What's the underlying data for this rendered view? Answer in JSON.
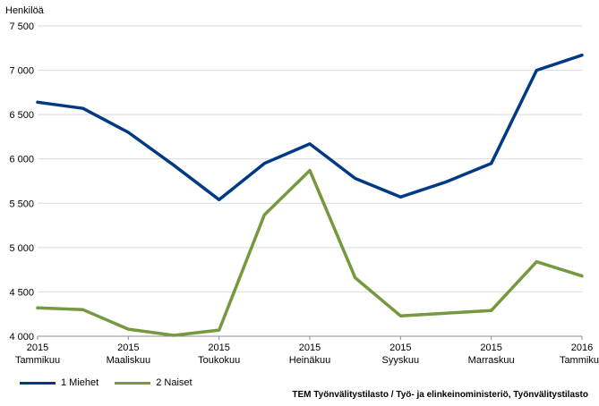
{
  "chart_data": {
    "type": "line",
    "ylabel": "Henkilöä",
    "ylim": [
      4000,
      7500
    ],
    "yticks": [
      4000,
      4500,
      5000,
      5500,
      6000,
      6500,
      7000,
      7500
    ],
    "ytick_labels": [
      "4 000",
      "4 500",
      "5 000",
      "5 500",
      "6 000",
      "6 500",
      "7 000",
      "7 500"
    ],
    "x_tick_labels": [
      {
        "index": 0,
        "year": "2015",
        "month": "Tammikuu"
      },
      {
        "index": 2,
        "year": "2015",
        "month": "Maaliskuu"
      },
      {
        "index": 4,
        "year": "2015",
        "month": "Toukokuu"
      },
      {
        "index": 6,
        "year": "2015",
        "month": "Heinäkuu"
      },
      {
        "index": 8,
        "year": "2015",
        "month": "Syyskuu"
      },
      {
        "index": 10,
        "year": "2015",
        "month": "Marraskuu"
      },
      {
        "index": 12,
        "year": "2016",
        "month": "Tammikuu"
      }
    ],
    "series": [
      {
        "name": "1 Miehet",
        "color": "#003a85",
        "values": [
          6640,
          6570,
          6300,
          5930,
          5540,
          5950,
          6170,
          5780,
          5570,
          5740,
          5950,
          7000,
          7170
        ]
      },
      {
        "name": "2 Naiset",
        "color": "#76983f",
        "values": [
          4320,
          4300,
          4080,
          4010,
          4070,
          5370,
          5870,
          4660,
          4230,
          4260,
          4290,
          4840,
          4680
        ]
      }
    ],
    "grid": "horizontal"
  },
  "source": "TEM Työnvälitystilasto / Työ- ja elinkeinoministeriö, Työnvälitystilasto"
}
